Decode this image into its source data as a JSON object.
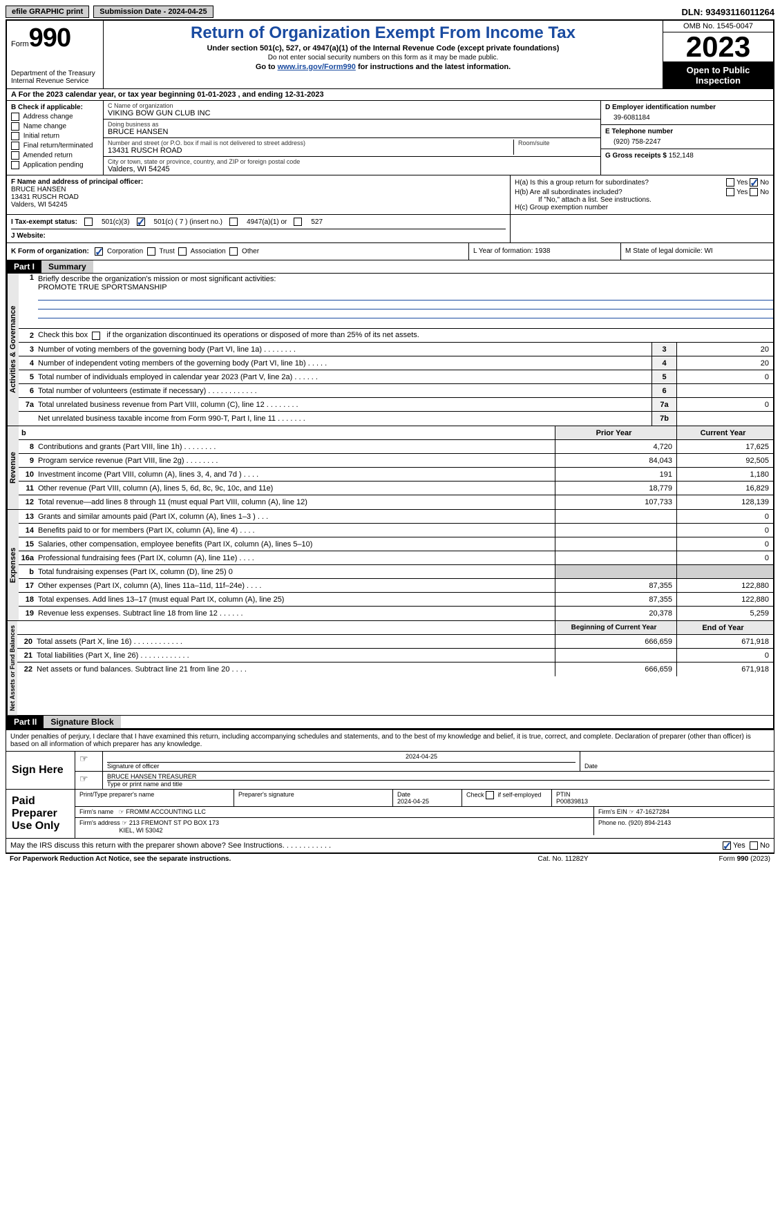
{
  "topbar": {
    "efile": "efile GRAPHIC print",
    "submission": "Submission Date - 2024-04-25",
    "dln": "DLN: 93493116011264"
  },
  "header": {
    "form_label": "Form",
    "form_num": "990",
    "dept": "Department of the Treasury\nInternal Revenue Service",
    "title": "Return of Organization Exempt From Income Tax",
    "sub": "Under section 501(c), 527, or 4947(a)(1) of the Internal Revenue Code (except private foundations)",
    "ssn_warn": "Do not enter social security numbers on this form as it may be made public.",
    "goto_pre": "Go to ",
    "goto_link": "www.irs.gov/Form990",
    "goto_post": " for instructions and the latest information.",
    "omb": "OMB No. 1545-0047",
    "year": "2023",
    "open_pub": "Open to Public Inspection"
  },
  "row_a": "A For the 2023 calendar year, or tax year beginning 01-01-2023   , and ending 12-31-2023",
  "col_b": {
    "label": "B Check if applicable:",
    "items": [
      "Address change",
      "Name change",
      "Initial return",
      "Final return/terminated",
      "Amended return",
      "Application pending"
    ]
  },
  "col_c": {
    "name_label": "C Name of organization",
    "name": "VIKING BOW GUN CLUB INC",
    "dba_label": "Doing business as",
    "dba": "BRUCE HANSEN",
    "street_label": "Number and street (or P.O. box if mail is not delivered to street address)",
    "street": "13431 RUSCH ROAD",
    "room_label": "Room/suite",
    "city_label": "City or town, state or province, country, and ZIP or foreign postal code",
    "city": "Valders, WI  54245"
  },
  "col_d": {
    "ein_label": "D Employer identification number",
    "ein": "39-6081184",
    "phone_label": "E Telephone number",
    "phone": "(920) 758-2247",
    "gross_label": "G Gross receipts $",
    "gross": "152,148"
  },
  "section3": {
    "f_label": "F  Name and address of principal officer:",
    "f_name": "BRUCE HANSEN",
    "f_street": "13431 RUSCH ROAD",
    "f_city": "Valders, WI  54245",
    "ha": "H(a)  Is this a group return for subordinates?",
    "hb": "H(b)  Are all subordinates included?",
    "hb_note": "If \"No,\" attach a list. See instructions.",
    "hc": "H(c)  Group exemption number",
    "yes": "Yes",
    "no": "No"
  },
  "row_i": {
    "label": "I  Tax-exempt status:",
    "opts": [
      "501(c)(3)",
      "501(c) ( 7 ) (insert no.)",
      "4947(a)(1) or",
      "527"
    ]
  },
  "row_j": {
    "label": "J  Website:"
  },
  "row_k": {
    "label": "K Form of organization:",
    "opts": [
      "Corporation",
      "Trust",
      "Association",
      "Other"
    ],
    "l": "L Year of formation: 1938",
    "m": "M State of legal domicile: WI"
  },
  "part1": {
    "hdr": "Part I",
    "title": "Summary",
    "vert1": "Activities & Governance",
    "vert2": "Revenue",
    "vert3": "Expenses",
    "vert4": "Net Assets or Fund Balances",
    "line1_label": "Briefly describe the organization's mission or most significant activities:",
    "line1_val": "PROMOTE TRUE SPORTSMANSHIP",
    "line2": "Check this box           if the organization discontinued its operations or disposed of more than 25% of its net assets.",
    "rows_gov": [
      {
        "n": "3",
        "t": "Number of voting members of the governing body (Part VI, line 1a)  .    .    .    .    .    .    .    .",
        "cn": "3",
        "v": "20"
      },
      {
        "n": "4",
        "t": "Number of independent voting members of the governing body (Part VI, line 1b)  .    .    .    .    .",
        "cn": "4",
        "v": "20"
      },
      {
        "n": "5",
        "t": "Total number of individuals employed in calendar year 2023 (Part V, line 2a)   .    .    .    .    .    .",
        "cn": "5",
        "v": "0"
      },
      {
        "n": "6",
        "t": "Total number of volunteers (estimate if necessary)  .    .    .    .    .    .    .    .    .    .    .    .",
        "cn": "6",
        "v": ""
      },
      {
        "n": "7a",
        "t": "Total unrelated business revenue from Part VIII, column (C), line 12   .    .    .    .    .    .    .    .",
        "cn": "7a",
        "v": "0"
      },
      {
        "n": "",
        "t": "Net unrelated business taxable income from Form 990-T, Part I, line 11   .    .    .    .    .    .    .",
        "cn": "7b",
        "v": ""
      }
    ],
    "col_hdr_b": "b",
    "col_prior": "Prior Year",
    "col_current": "Current Year",
    "rows_rev": [
      {
        "n": "8",
        "t": "Contributions and grants (Part VIII, line 1h)   .    .    .    .    .    .    .    .",
        "p": "4,720",
        "c": "17,625"
      },
      {
        "n": "9",
        "t": "Program service revenue (Part VIII, line 2g)   .    .    .    .    .    .    .    .",
        "p": "84,043",
        "c": "92,505"
      },
      {
        "n": "10",
        "t": "Investment income (Part VIII, column (A), lines 3, 4, and 7d )   .    .    .    .",
        "p": "191",
        "c": "1,180"
      },
      {
        "n": "11",
        "t": "Other revenue (Part VIII, column (A), lines 5, 6d, 8c, 9c, 10c, and 11e)",
        "p": "18,779",
        "c": "16,829"
      },
      {
        "n": "12",
        "t": "Total revenue—add lines 8 through 11 (must equal Part VIII, column (A), line 12)",
        "p": "107,733",
        "c": "128,139"
      }
    ],
    "rows_exp": [
      {
        "n": "13",
        "t": "Grants and similar amounts paid (Part IX, column (A), lines 1–3 )  .    .    .",
        "p": "",
        "c": "0"
      },
      {
        "n": "14",
        "t": "Benefits paid to or for members (Part IX, column (A), line 4)  .    .    .    .",
        "p": "",
        "c": "0"
      },
      {
        "n": "15",
        "t": "Salaries, other compensation, employee benefits (Part IX, column (A), lines 5–10)",
        "p": "",
        "c": "0"
      },
      {
        "n": "16a",
        "t": "Professional fundraising fees (Part IX, column (A), line 11e)  .    .    .    .",
        "p": "",
        "c": "0"
      },
      {
        "n": "b",
        "t": "Total fundraising expenses (Part IX, column (D), line 25) 0",
        "p": "SHADE",
        "c": "SHADE"
      },
      {
        "n": "17",
        "t": "Other expenses (Part IX, column (A), lines 11a–11d, 11f–24e)  .    .    .    .",
        "p": "87,355",
        "c": "122,880"
      },
      {
        "n": "18",
        "t": "Total expenses. Add lines 13–17 (must equal Part IX, column (A), line 25)",
        "p": "87,355",
        "c": "122,880"
      },
      {
        "n": "19",
        "t": "Revenue less expenses. Subtract line 18 from line 12   .    .    .    .    .    .",
        "p": "20,378",
        "c": "5,259"
      }
    ],
    "col_begin": "Beginning of Current Year",
    "col_end": "End of Year",
    "rows_net": [
      {
        "n": "20",
        "t": "Total assets (Part X, line 16)   .    .    .    .    .    .    .    .    .    .    .    .",
        "p": "666,659",
        "c": "671,918"
      },
      {
        "n": "21",
        "t": "Total liabilities (Part X, line 26)  .    .    .    .    .    .    .    .    .    .    .    .",
        "p": "",
        "c": "0"
      },
      {
        "n": "22",
        "t": "Net assets or fund balances. Subtract line 21 from line 20   .    .    .    .",
        "p": "666,659",
        "c": "671,918"
      }
    ]
  },
  "part2": {
    "hdr": "Part II",
    "title": "Signature Block",
    "decl": "Under penalties of perjury, I declare that I have examined this return, including accompanying schedules and statements, and to the best of my knowledge and belief, it is true, correct, and complete. Declaration of preparer (other than officer) is based on all information of which preparer has any knowledge.",
    "sign_here": "Sign Here",
    "sig_date": "2024-04-25",
    "sig_of_officer": "Signature of officer",
    "officer_name": "BRUCE HANSEN TREASURER",
    "type_name": "Type or print name and title",
    "date_label": "Date",
    "paid_prep": "Paid Preparer Use Only",
    "print_name": "Print/Type preparer's name",
    "prep_sig": "Preparer's signature",
    "prep_date": "2024-04-25",
    "check_self": "Check          if self-employed",
    "ptin_label": "PTIN",
    "ptin": "P00839813",
    "firm_name_label": "Firm's name",
    "firm_name": "FROMM ACCOUNTING LLC",
    "firm_ein_label": "Firm's EIN",
    "firm_ein": "47-1627284",
    "firm_addr_label": "Firm's address",
    "firm_addr": "213 FREMONT ST PO BOX 173",
    "firm_city": "KIEL, WI  53042",
    "phone_label": "Phone no.",
    "phone": "(920) 894-2143",
    "discuss": "May the IRS discuss this return with the preparer shown above? See Instructions.   .    .    .    .    .    .    .    .    .    .    ."
  },
  "footer": {
    "left": "For Paperwork Reduction Act Notice, see the separate instructions.",
    "mid": "Cat. No. 11282Y",
    "right_pre": "Form ",
    "right_num": "990",
    "right_post": " (2023)"
  }
}
